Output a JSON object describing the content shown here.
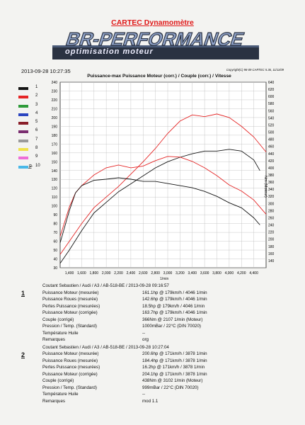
{
  "header": {
    "title": "CARTEC Dynamomètre",
    "logo_brand": "BR-PERFORMANCE",
    "logo_tagline": "optimisation moteur",
    "timestamp": "2013-09-28 10:27:35",
    "copyright": "Copyright(C) 98-09 CARTEC 5.36, 11/11/09"
  },
  "colors": {
    "logo_bg": "#2a3242",
    "trace_red": "#e52525",
    "trace_black": "#141414"
  },
  "chart_data": {
    "type": "line",
    "title": "Puissance-max Puissance Moteur (corr.) / Couple (corr.) / Vitesse",
    "xlabel": "1/min",
    "ylabel_left": "hp",
    "ylabel_right": "Nm (Moteur)",
    "xlim": [
      1250,
      4600
    ],
    "ylim_left": [
      30,
      240
    ],
    "ylim_right": [
      120,
      640
    ],
    "x_ticks": [
      "1,400",
      "1,600",
      "1,800",
      "2,000",
      "2,200",
      "2,400",
      "2,600",
      "2,800",
      "3,000",
      "3,200",
      "3,400",
      "3,600",
      "3,800",
      "4,000",
      "4,200",
      "4,400"
    ],
    "x_tick_values": [
      1400,
      1600,
      1800,
      2000,
      2200,
      2400,
      2600,
      2800,
      3000,
      3200,
      3400,
      3600,
      3800,
      4000,
      4200,
      4400
    ],
    "y_left_ticks": [
      30,
      40,
      50,
      60,
      70,
      80,
      90,
      100,
      110,
      120,
      130,
      140,
      150,
      160,
      170,
      180,
      190,
      200,
      210,
      220,
      230,
      240
    ],
    "y_right_ticks": [
      140,
      160,
      180,
      200,
      220,
      240,
      260,
      280,
      300,
      320,
      340,
      360,
      380,
      400,
      420,
      440,
      460,
      480,
      500,
      520,
      540,
      560,
      580,
      600,
      620,
      640
    ],
    "grid": true,
    "legend_items": [
      {
        "label": "1",
        "color": "#141414"
      },
      {
        "label": "2",
        "color": "#e52525"
      },
      {
        "label": "3",
        "color": "#2e9b3a"
      },
      {
        "label": "4",
        "color": "#2b45c0"
      },
      {
        "label": "5",
        "color": "#8a1f2a"
      },
      {
        "label": "6",
        "color": "#7a2e70"
      },
      {
        "label": "7",
        "color": "#9a9a9a"
      },
      {
        "label": "8",
        "color": "#f0e24a"
      },
      {
        "label": "9",
        "color": "#ee6fd8"
      },
      {
        "label": "10",
        "color": "#49b8e8"
      }
    ],
    "series": [
      {
        "color": "#e52525",
        "axis": "left",
        "x": [
          1250,
          1400,
          1600,
          1800,
          2000,
          2200,
          2400,
          2600,
          2800,
          3000,
          3200,
          3400,
          3600,
          3800,
          4000,
          4200,
          4400,
          4600
        ],
        "y": [
          45,
          60,
          80,
          98,
          110,
          122,
          136,
          150,
          165,
          182,
          196,
          203,
          201,
          204,
          200,
          190,
          178,
          161
        ]
      },
      {
        "color": "#141414",
        "axis": "left",
        "x": [
          1250,
          1400,
          1600,
          1800,
          2000,
          2200,
          2400,
          2600,
          2800,
          3000,
          3200,
          3400,
          3600,
          3800,
          4000,
          4200,
          4400,
          4500
        ],
        "y": [
          35,
          50,
          72,
          92,
          104,
          116,
          125,
          134,
          143,
          150,
          155,
          159,
          162,
          162,
          164,
          162,
          152,
          140
        ]
      },
      {
        "color": "#e52525",
        "axis": "right",
        "x": [
          1250,
          1400,
          1500,
          1600,
          1800,
          2000,
          2200,
          2400,
          2600,
          2800,
          3000,
          3200,
          3400,
          3600,
          3800,
          4000,
          4200,
          4400,
          4600
        ],
        "y": [
          208,
          290,
          330,
          350,
          380,
          400,
          408,
          400,
          405,
          420,
          432,
          430,
          418,
          400,
          378,
          352,
          335,
          310,
          270
        ]
      },
      {
        "color": "#141414",
        "axis": "right",
        "x": [
          1250,
          1400,
          1500,
          1600,
          1800,
          2000,
          2200,
          2400,
          2600,
          2800,
          3000,
          3200,
          3400,
          3600,
          3800,
          4000,
          4200,
          4400,
          4500
        ],
        "y": [
          190,
          280,
          330,
          350,
          365,
          368,
          372,
          368,
          362,
          362,
          356,
          350,
          344,
          334,
          320,
          302,
          288,
          260,
          240
        ]
      }
    ]
  },
  "results": [
    {
      "num": "1",
      "header": "Coutant Sebastien / Audi / A3 / AB-518-BE / 2013-09-28 09:16:57",
      "rows": [
        {
          "label": "Puissance Moteur (mesurée)",
          "value": "161.1hp @ 179km/h / 4046 1/min"
        },
        {
          "label": "Puissance Roues (mesurée)",
          "value": "142.6hp @ 179km/h / 4046 1/min"
        },
        {
          "label": "Pertes Puissance (mesurées)",
          "value": "18.5hp @ 179km/h / 4046 1/min"
        },
        {
          "label": "Puissance Moteur (corrigée)",
          "value": "163.7hp @ 179km/h / 4046 1/min"
        },
        {
          "label": "Couple (corrigé)",
          "value": "366Nm @ 2107 1/min (Moteur)"
        },
        {
          "label": "Pression / Temp. (Standard)",
          "value": "1000mBar / 22°C   (DIN 70020)"
        },
        {
          "label": "Température Huile",
          "value": "--"
        },
        {
          "label": "Remarques",
          "value": "org"
        }
      ]
    },
    {
      "num": "2",
      "header": "Coutant Sebastien / Audi / A3 / AB-518-BE / 2013-09-28 10:27:04",
      "rows": [
        {
          "label": "Puissance Moteur (mesurée)",
          "value": "200.6hp @ 171km/h / 3878 1/min"
        },
        {
          "label": "Puissance Roues (mesurée)",
          "value": "184.4hp @ 171km/h / 3878 1/min"
        },
        {
          "label": "Pertes Puissance (mesurées)",
          "value": "16.2hp @ 171km/h / 3878 1/min"
        },
        {
          "label": "Puissance Moteur (corrigée)",
          "value": "204.1hp @ 171km/h / 3878 1/min"
        },
        {
          "label": "Couple (corrigé)",
          "value": "438Nm @ 3102 1/min (Moteur)"
        },
        {
          "label": "Pression / Temp. (Standard)",
          "value": "999mBar / 22°C   (DIN 70020)"
        },
        {
          "label": "Température Huile",
          "value": "--"
        },
        {
          "label": "Remarques",
          "value": "mod 1.1"
        }
      ]
    }
  ]
}
